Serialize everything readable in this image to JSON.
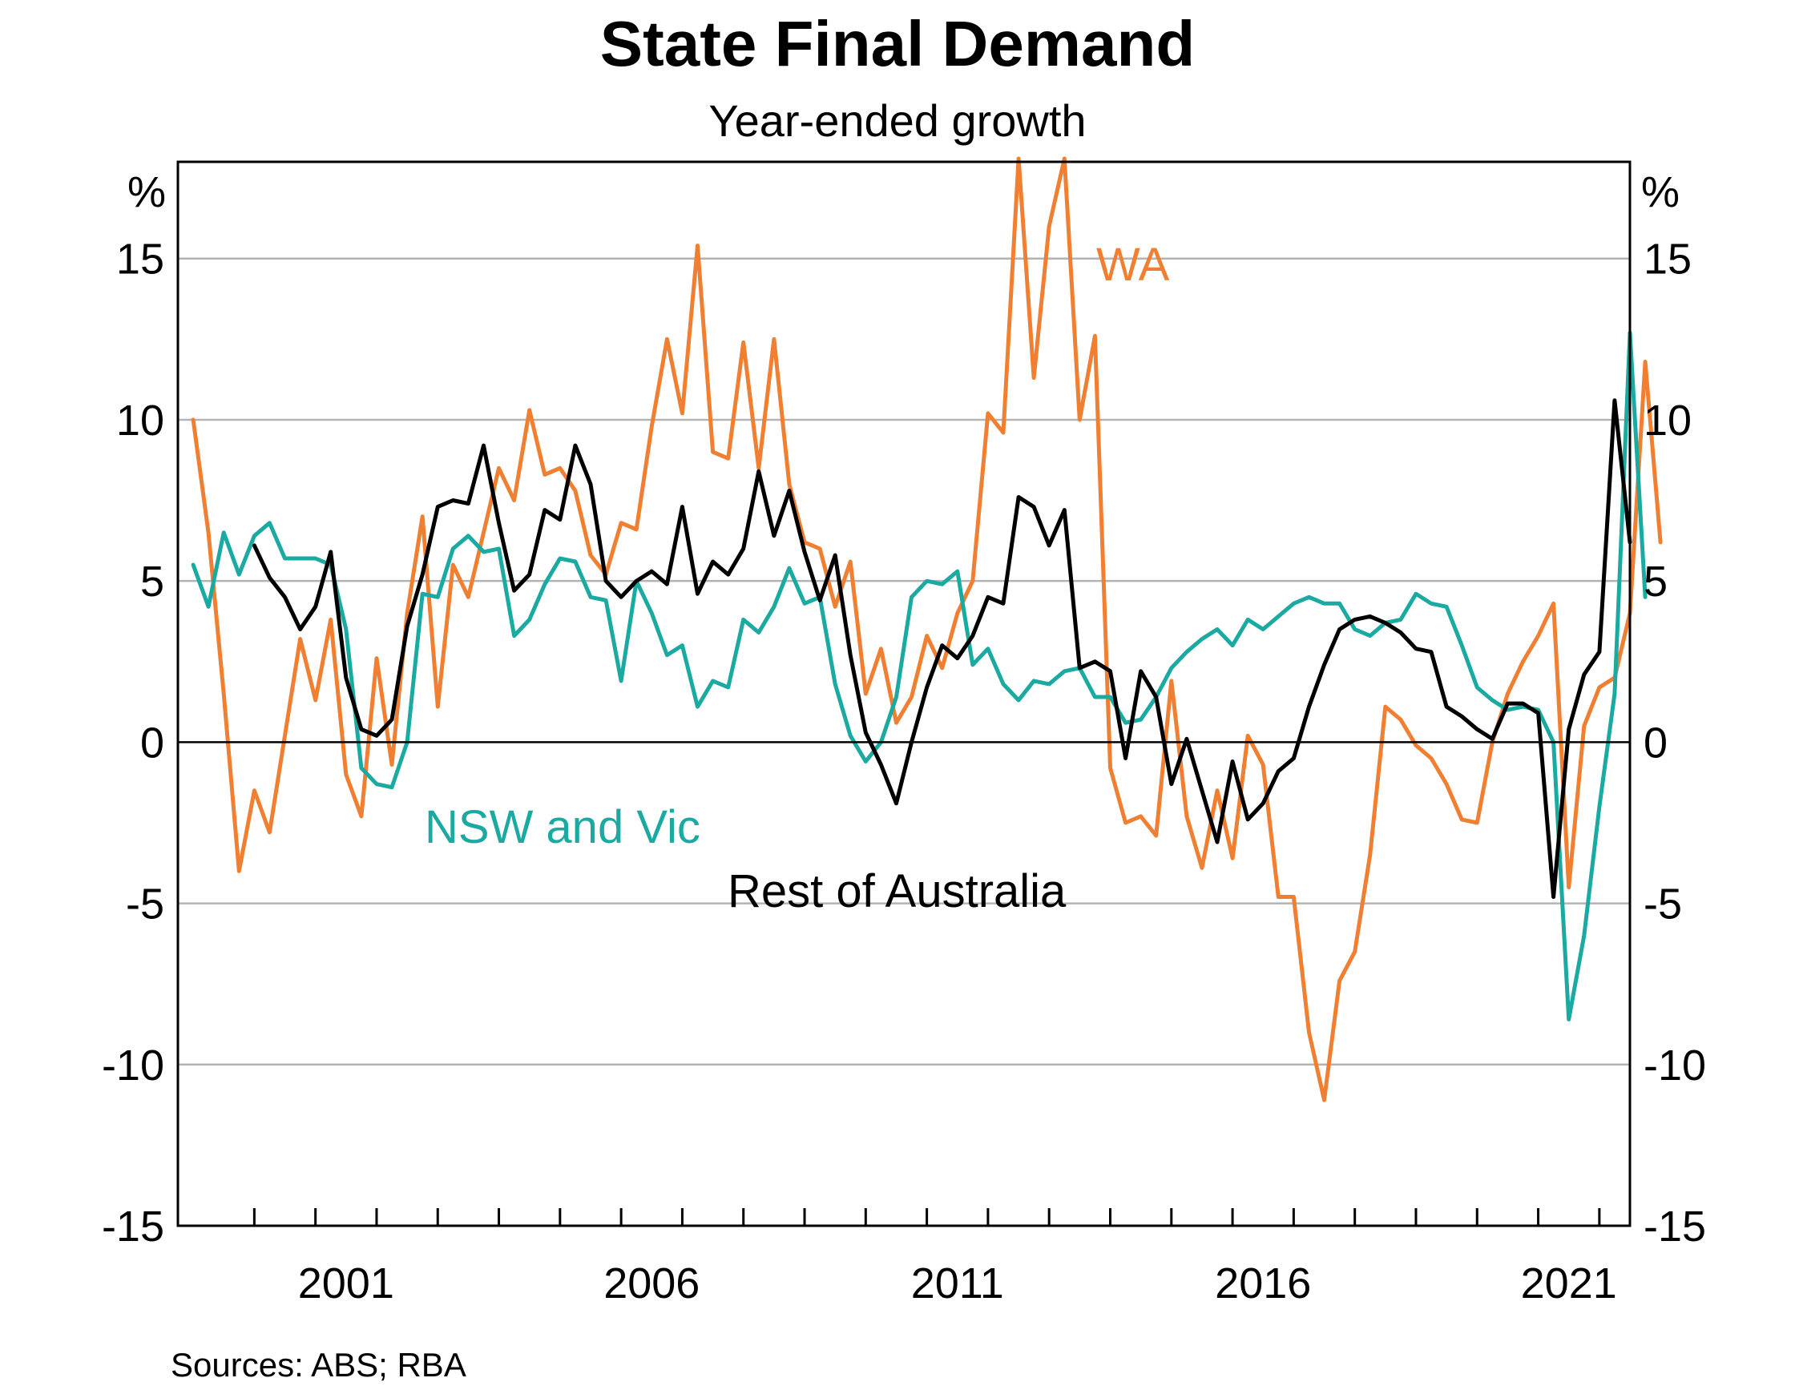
{
  "chart_data": {
    "type": "line",
    "title": "State Final Demand",
    "subtitle": "Year-ended growth",
    "ylabel_left": "%",
    "ylabel_right": "%",
    "ylim": [
      -15,
      18
    ],
    "yticks": [
      {
        "value": 15,
        "label": "15"
      },
      {
        "value": 10,
        "label": "10"
      },
      {
        "value": 5,
        "label": "5"
      },
      {
        "value": 0,
        "label": "0"
      },
      {
        "value": -5,
        "label": "-5"
      },
      {
        "value": -10,
        "label": "-10"
      },
      {
        "value": -15,
        "label": "-15"
      }
    ],
    "xlim": [
      1997.75,
      2021.5
    ],
    "xticks": [
      {
        "value": 2001,
        "label": "2001"
      },
      {
        "value": 2006,
        "label": "2006"
      },
      {
        "value": 2011,
        "label": "2011"
      },
      {
        "value": 2016,
        "label": "2016"
      },
      {
        "value": 2021,
        "label": "2021"
      }
    ],
    "source": "Sources: ABS; RBA",
    "series": [
      {
        "name": "WA",
        "color": "#f07f32",
        "label": "WA",
        "x_start": 1998.0,
        "x_step": 0.25,
        "values": [
          10.0,
          6.5,
          1.5,
          -4.0,
          -1.5,
          -2.8,
          0.2,
          3.2,
          1.3,
          3.8,
          -1.0,
          -2.3,
          2.6,
          -0.7,
          4.0,
          7.0,
          1.1,
          5.5,
          4.5,
          6.5,
          8.5,
          7.5,
          10.3,
          8.3,
          8.5,
          7.8,
          5.8,
          5.2,
          6.8,
          6.6,
          9.8,
          12.5,
          10.2,
          15.4,
          9.0,
          8.8,
          12.4,
          8.5,
          12.5,
          8.0,
          6.2,
          6.0,
          4.2,
          5.6,
          1.5,
          2.9,
          0.6,
          1.4,
          3.3,
          2.3,
          4.0,
          5.0,
          10.2,
          9.6,
          18.1,
          11.3,
          16.0,
          18.1,
          10.0,
          12.6,
          -0.8,
          -2.5,
          -2.3,
          -2.9,
          1.9,
          -2.3,
          -3.9,
          -1.5,
          -3.6,
          0.2,
          -0.7,
          -4.8,
          -4.8,
          -9.0,
          -11.1,
          -7.4,
          -6.5,
          -3.5,
          1.1,
          0.7,
          -0.1,
          -0.5,
          -1.3,
          -2.4,
          -2.5,
          0.0,
          1.5,
          2.5,
          3.3,
          4.3,
          -4.5,
          0.5,
          1.7,
          2.0,
          4.0,
          11.8,
          6.2
        ]
      },
      {
        "name": "NSW and Vic",
        "color": "#1aaaa1",
        "label": "NSW and Vic",
        "x_start": 1998.0,
        "x_step": 0.25,
        "values": [
          5.5,
          4.2,
          6.5,
          5.2,
          6.4,
          6.8,
          5.7,
          5.7,
          5.7,
          5.5,
          3.5,
          -0.8,
          -1.3,
          -1.4,
          0.0,
          4.6,
          4.5,
          6.0,
          6.4,
          5.9,
          6.0,
          3.3,
          3.8,
          4.9,
          5.7,
          5.6,
          4.5,
          4.4,
          1.9,
          5.0,
          4.0,
          2.7,
          3.0,
          1.1,
          1.9,
          1.7,
          3.8,
          3.4,
          4.2,
          5.4,
          4.3,
          4.5,
          1.8,
          0.2,
          -0.6,
          0.0,
          1.4,
          4.5,
          5.0,
          4.9,
          5.3,
          2.4,
          2.9,
          1.8,
          1.3,
          1.9,
          1.8,
          2.2,
          2.3,
          1.4,
          1.4,
          0.6,
          0.7,
          1.4,
          2.3,
          2.8,
          3.2,
          3.5,
          3.0,
          3.8,
          3.5,
          3.9,
          4.3,
          4.5,
          4.3,
          4.3,
          3.5,
          3.3,
          3.7,
          3.8,
          4.6,
          4.3,
          4.2,
          3.0,
          1.7,
          1.3,
          1.0,
          1.1,
          1.0,
          0.0,
          -8.6,
          -6.0,
          -2.0,
          1.5,
          12.7,
          4.5
        ]
      },
      {
        "name": "Rest of Australia",
        "color": "#000000",
        "label": "Rest of Australia",
        "x_start": 1999.0,
        "x_step": 0.25,
        "values": [
          6.1,
          5.1,
          4.5,
          3.5,
          4.2,
          5.9,
          2.0,
          0.4,
          0.2,
          0.7,
          3.6,
          5.2,
          7.3,
          7.5,
          7.4,
          9.2,
          6.8,
          4.7,
          5.2,
          7.2,
          6.9,
          9.2,
          8.0,
          5.0,
          4.5,
          5.0,
          5.3,
          4.9,
          7.3,
          4.6,
          5.6,
          5.2,
          6.0,
          8.4,
          6.4,
          7.8,
          5.9,
          4.4,
          5.8,
          2.7,
          0.3,
          -0.7,
          -1.9,
          0.0,
          1.7,
          3.0,
          2.6,
          3.3,
          4.5,
          4.3,
          7.6,
          7.3,
          6.1,
          7.2,
          2.3,
          2.5,
          2.2,
          -0.5,
          2.2,
          1.4,
          -1.3,
          0.1,
          -1.5,
          -3.1,
          -0.6,
          -2.4,
          -1.9,
          -0.9,
          -0.5,
          1.1,
          2.4,
          3.5,
          3.8,
          3.9,
          3.7,
          3.4,
          2.9,
          2.8,
          1.1,
          0.8,
          0.4,
          0.1,
          1.2,
          1.2,
          0.9,
          -4.8,
          0.4,
          2.1,
          2.8,
          10.6,
          6.2
        ]
      }
    ]
  }
}
